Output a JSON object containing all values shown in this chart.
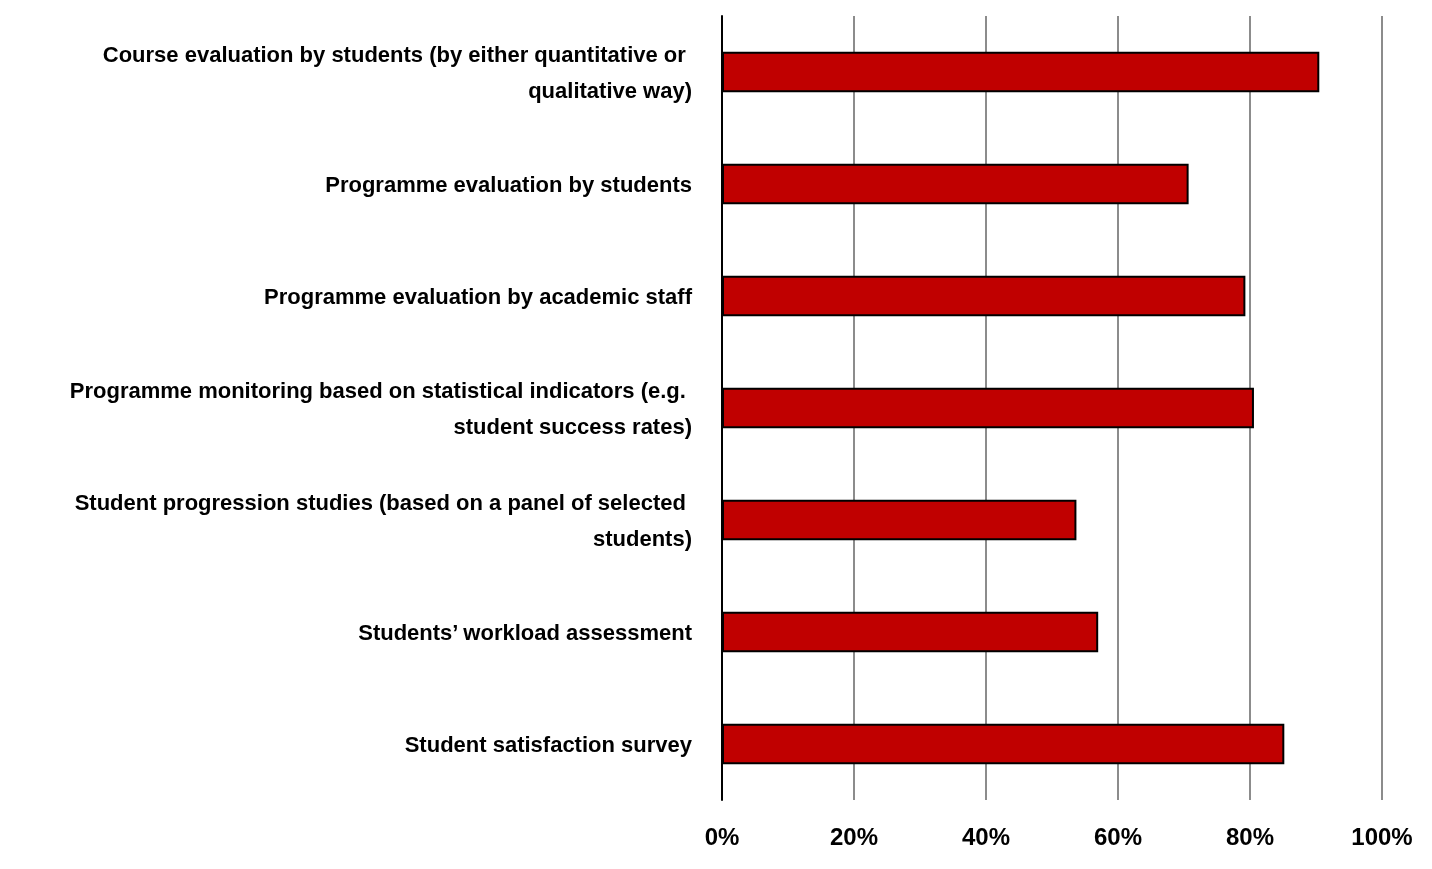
{
  "chart_data": {
    "type": "bar",
    "orientation": "horizontal",
    "categories": [
      "Course evaluation by students (by either quantitative or qualitative way)",
      "Programme evaluation by students",
      "Programme evaluation by academic staff",
      "Programme monitoring based on statistical indicators (e.g. student success rates)",
      "Student progression studies (based on a panel of selected students)",
      "Students’ workload assessment",
      "Student satisfaction survey"
    ],
    "values": [
      90.5,
      70.7,
      79.3,
      80.6,
      53.7,
      57,
      85.2
    ],
    "color": "#c00000",
    "xlim": [
      0,
      100
    ],
    "xticks": [
      {
        "value": 0,
        "label": "0%"
      },
      {
        "value": 20,
        "label": "20%"
      },
      {
        "value": 40,
        "label": "40%"
      },
      {
        "value": 60,
        "label": "60%"
      },
      {
        "value": 80,
        "label": "80%"
      },
      {
        "value": 100,
        "label": "100%"
      }
    ],
    "grid": "x"
  }
}
